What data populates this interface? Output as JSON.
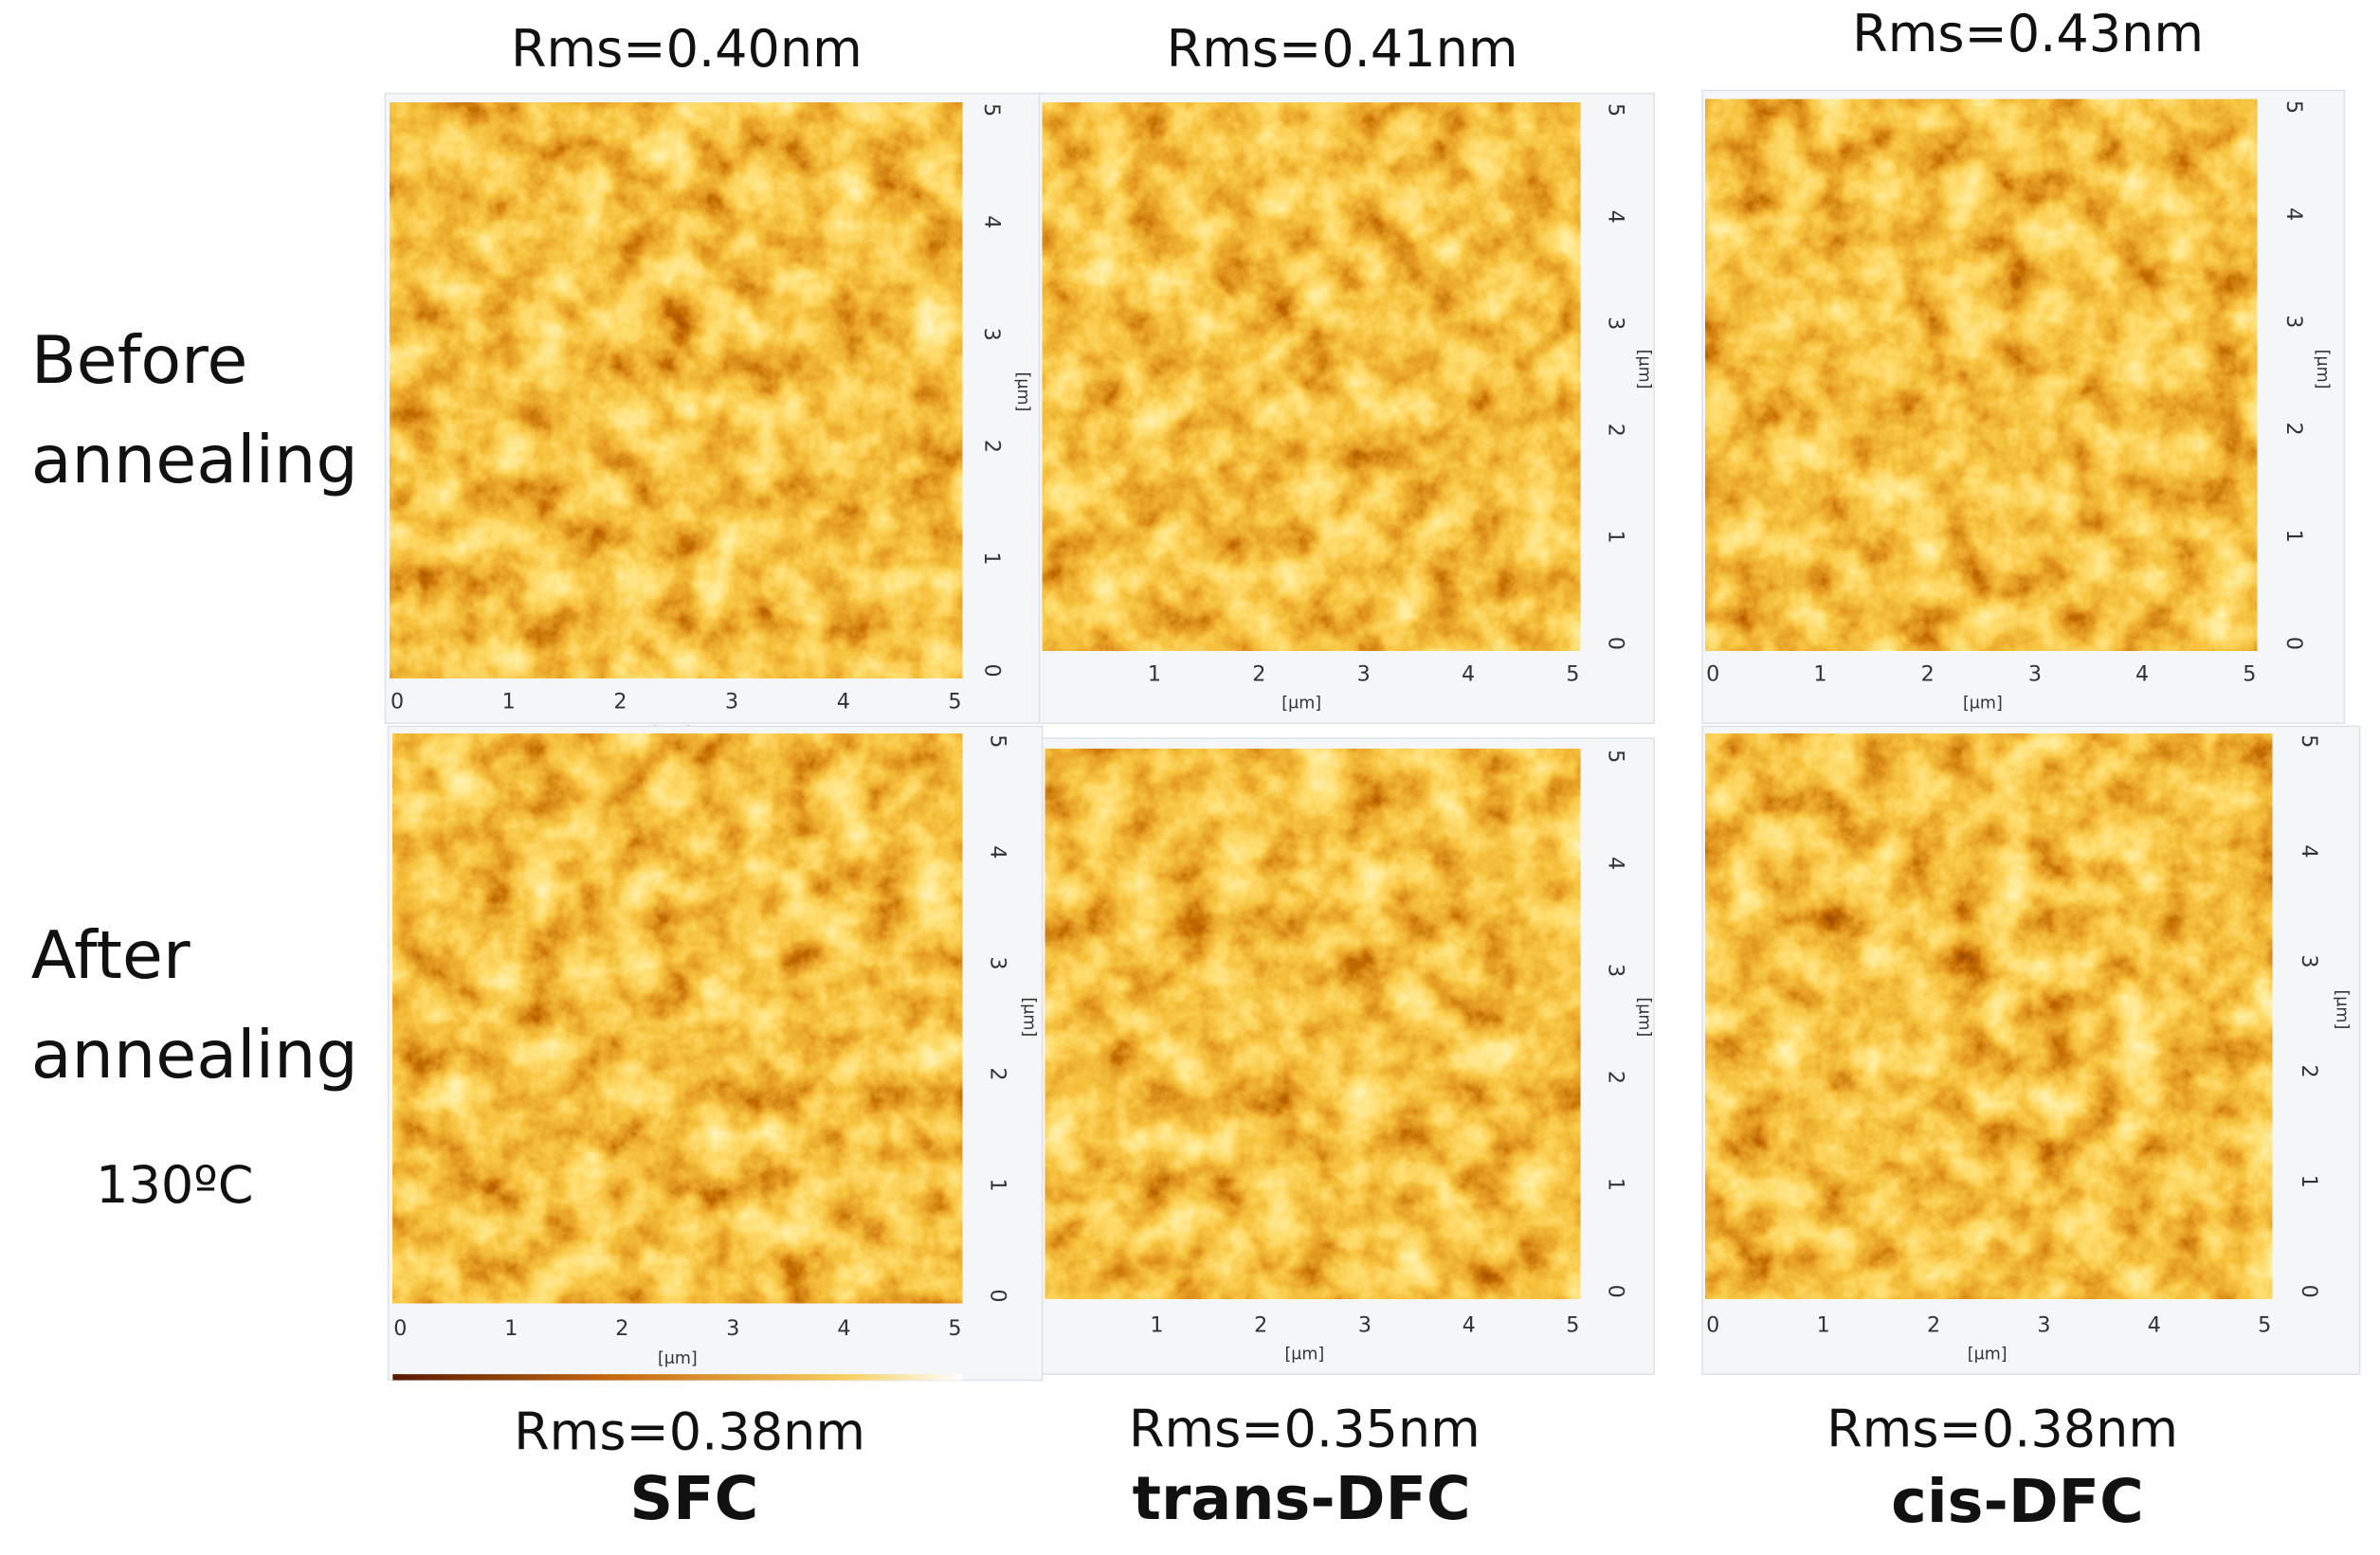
{
  "columns": [
    {
      "sample": "SFC",
      "rms_before": "Rms=0.40nm",
      "rms_after": "Rms=0.38nm"
    },
    {
      "sample": "trans-DFC",
      "rms_before": "Rms=0.41nm",
      "rms_after": "Rms=0.35nm"
    },
    {
      "sample": "cis-DFC",
      "rms_before": "Rms=0.43nm",
      "rms_after": "Rms=0.38nm"
    }
  ],
  "rows": [
    {
      "label_lines": [
        "Before",
        "annealing"
      ]
    },
    {
      "label_lines": [
        "After",
        "annealing"
      ],
      "condition": "130ºC"
    }
  ],
  "axis": {
    "ticks": [
      "0",
      "1",
      "2",
      "3",
      "4",
      "5"
    ],
    "unit": "[μm]"
  }
}
